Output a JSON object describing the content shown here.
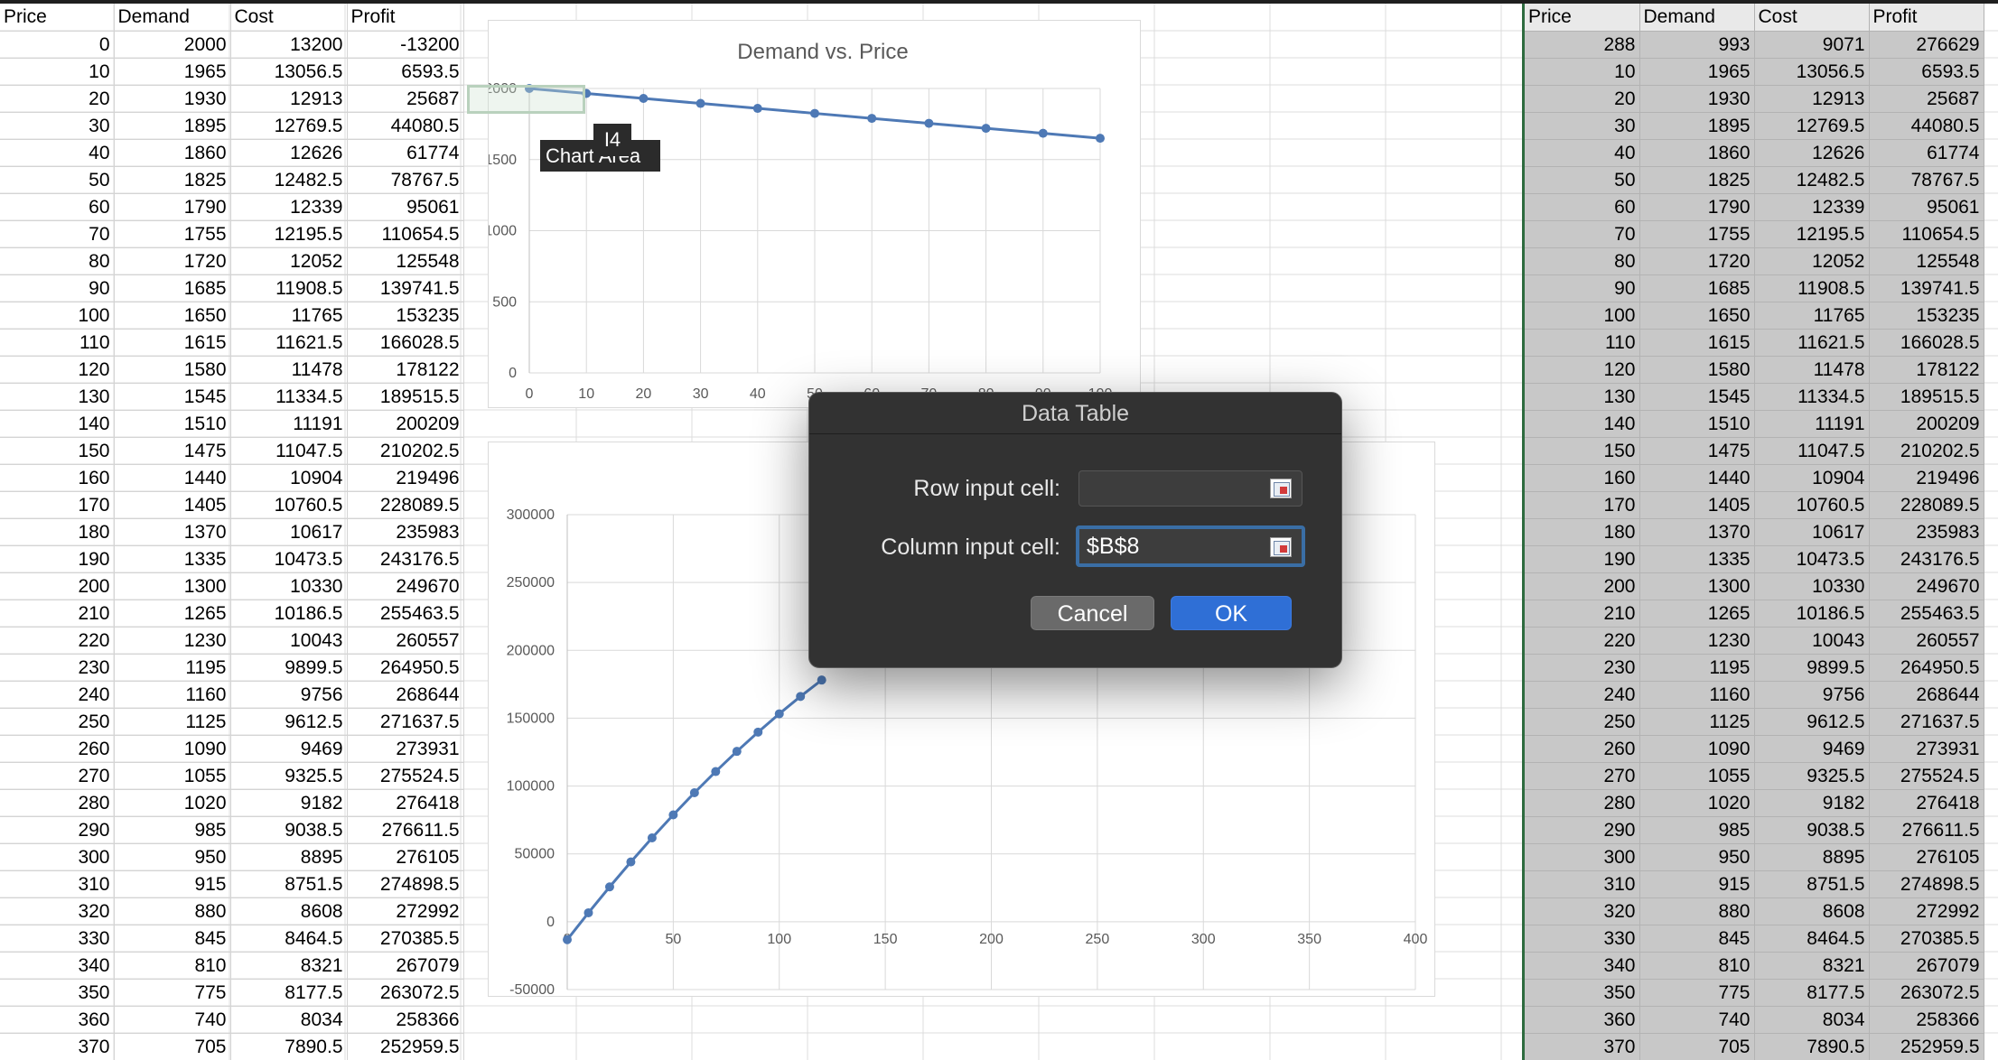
{
  "headers": [
    "Price",
    "Demand",
    "Cost",
    "Profit"
  ],
  "left_rows": [
    [
      "0",
      "2000",
      "13200",
      "-13200"
    ],
    [
      "10",
      "1965",
      "13056.5",
      "6593.5"
    ],
    [
      "20",
      "1930",
      "12913",
      "25687"
    ],
    [
      "30",
      "1895",
      "12769.5",
      "44080.5"
    ],
    [
      "40",
      "1860",
      "12626",
      "61774"
    ],
    [
      "50",
      "1825",
      "12482.5",
      "78767.5"
    ],
    [
      "60",
      "1790",
      "12339",
      "95061"
    ],
    [
      "70",
      "1755",
      "12195.5",
      "110654.5"
    ],
    [
      "80",
      "1720",
      "12052",
      "125548"
    ],
    [
      "90",
      "1685",
      "11908.5",
      "139741.5"
    ],
    [
      "100",
      "1650",
      "11765",
      "153235"
    ],
    [
      "110",
      "1615",
      "11621.5",
      "166028.5"
    ],
    [
      "120",
      "1580",
      "11478",
      "178122"
    ],
    [
      "130",
      "1545",
      "11334.5",
      "189515.5"
    ],
    [
      "140",
      "1510",
      "11191",
      "200209"
    ],
    [
      "150",
      "1475",
      "11047.5",
      "210202.5"
    ],
    [
      "160",
      "1440",
      "10904",
      "219496"
    ],
    [
      "170",
      "1405",
      "10760.5",
      "228089.5"
    ],
    [
      "180",
      "1370",
      "10617",
      "235983"
    ],
    [
      "190",
      "1335",
      "10473.5",
      "243176.5"
    ],
    [
      "200",
      "1300",
      "10330",
      "249670"
    ],
    [
      "210",
      "1265",
      "10186.5",
      "255463.5"
    ],
    [
      "220",
      "1230",
      "10043",
      "260557"
    ],
    [
      "230",
      "1195",
      "9899.5",
      "264950.5"
    ],
    [
      "240",
      "1160",
      "9756",
      "268644"
    ],
    [
      "250",
      "1125",
      "9612.5",
      "271637.5"
    ],
    [
      "260",
      "1090",
      "9469",
      "273931"
    ],
    [
      "270",
      "1055",
      "9325.5",
      "275524.5"
    ],
    [
      "280",
      "1020",
      "9182",
      "276418"
    ],
    [
      "290",
      "985",
      "9038.5",
      "276611.5"
    ],
    [
      "300",
      "950",
      "8895",
      "276105"
    ],
    [
      "310",
      "915",
      "8751.5",
      "274898.5"
    ],
    [
      "320",
      "880",
      "8608",
      "272992"
    ],
    [
      "330",
      "845",
      "8464.5",
      "270385.5"
    ],
    [
      "340",
      "810",
      "8321",
      "267079"
    ],
    [
      "350",
      "775",
      "8177.5",
      "263072.5"
    ],
    [
      "360",
      "740",
      "8034",
      "258366"
    ],
    [
      "370",
      "705",
      "7890.5",
      "252959.5"
    ]
  ],
  "right_rows": [
    [
      "288",
      "993",
      "9071",
      "276629"
    ],
    [
      "10",
      "1965",
      "13056.5",
      "6593.5"
    ],
    [
      "20",
      "1930",
      "12913",
      "25687"
    ],
    [
      "30",
      "1895",
      "12769.5",
      "44080.5"
    ],
    [
      "40",
      "1860",
      "12626",
      "61774"
    ],
    [
      "50",
      "1825",
      "12482.5",
      "78767.5"
    ],
    [
      "60",
      "1790",
      "12339",
      "95061"
    ],
    [
      "70",
      "1755",
      "12195.5",
      "110654.5"
    ],
    [
      "80",
      "1720",
      "12052",
      "125548"
    ],
    [
      "90",
      "1685",
      "11908.5",
      "139741.5"
    ],
    [
      "100",
      "1650",
      "11765",
      "153235"
    ],
    [
      "110",
      "1615",
      "11621.5",
      "166028.5"
    ],
    [
      "120",
      "1580",
      "11478",
      "178122"
    ],
    [
      "130",
      "1545",
      "11334.5",
      "189515.5"
    ],
    [
      "140",
      "1510",
      "11191",
      "200209"
    ],
    [
      "150",
      "1475",
      "11047.5",
      "210202.5"
    ],
    [
      "160",
      "1440",
      "10904",
      "219496"
    ],
    [
      "170",
      "1405",
      "10760.5",
      "228089.5"
    ],
    [
      "180",
      "1370",
      "10617",
      "235983"
    ],
    [
      "190",
      "1335",
      "10473.5",
      "243176.5"
    ],
    [
      "200",
      "1300",
      "10330",
      "249670"
    ],
    [
      "210",
      "1265",
      "10186.5",
      "255463.5"
    ],
    [
      "220",
      "1230",
      "10043",
      "260557"
    ],
    [
      "230",
      "1195",
      "9899.5",
      "264950.5"
    ],
    [
      "240",
      "1160",
      "9756",
      "268644"
    ],
    [
      "250",
      "1125",
      "9612.5",
      "271637.5"
    ],
    [
      "260",
      "1090",
      "9469",
      "273931"
    ],
    [
      "270",
      "1055",
      "9325.5",
      "275524.5"
    ],
    [
      "280",
      "1020",
      "9182",
      "276418"
    ],
    [
      "290",
      "985",
      "9038.5",
      "276611.5"
    ],
    [
      "300",
      "950",
      "8895",
      "276105"
    ],
    [
      "310",
      "915",
      "8751.5",
      "274898.5"
    ],
    [
      "320",
      "880",
      "8608",
      "272992"
    ],
    [
      "330",
      "845",
      "8464.5",
      "270385.5"
    ],
    [
      "340",
      "810",
      "8321",
      "267079"
    ],
    [
      "350",
      "775",
      "8177.5",
      "263072.5"
    ],
    [
      "360",
      "740",
      "8034",
      "258366"
    ],
    [
      "370",
      "705",
      "7890.5",
      "252959.5"
    ]
  ],
  "tooltip": {
    "cell": "I4",
    "area": "Chart Area"
  },
  "dialog": {
    "title": "Data Table",
    "row_label": "Row input cell:",
    "row_value": "",
    "column_label": "Column input cell:",
    "column_value": "$B$8",
    "cancel": "Cancel",
    "ok": "OK"
  },
  "colors": {
    "series": "#4e79b5",
    "selection_border": "#2e6b3f",
    "ok_button": "#2f6fd6"
  },
  "chart_data": [
    {
      "type": "scatter",
      "title": "Demand vs. Price",
      "xlabel": "",
      "ylabel": "",
      "x": [
        0,
        10,
        20,
        30,
        40,
        50,
        60,
        70,
        80,
        90,
        100
      ],
      "y": [
        2000,
        1965,
        1930,
        1895,
        1860,
        1825,
        1790,
        1755,
        1720,
        1685,
        1650
      ],
      "xlim": [
        0,
        100
      ],
      "ylim": [
        0,
        2000
      ],
      "xticks": [
        "0",
        "10",
        "20",
        "30",
        "40",
        "50",
        "60",
        "70",
        "80",
        "90",
        "100"
      ],
      "yticks": [
        "0",
        "500",
        "1000",
        "1500",
        "2000"
      ],
      "grid": true
    },
    {
      "type": "scatter",
      "title": "",
      "xlabel": "",
      "ylabel": "",
      "x": [
        0,
        10,
        20,
        30,
        40,
        50,
        60,
        70,
        80,
        90,
        100,
        110,
        120
      ],
      "y": [
        -13200,
        6593.5,
        25687,
        44080.5,
        61774,
        78767.5,
        95061,
        110654.5,
        125548,
        139741.5,
        153235,
        166028.5,
        178122
      ],
      "xlim": [
        0,
        400
      ],
      "ylim": [
        -50000,
        300000
      ],
      "xticks": [
        "0",
        "50",
        "100",
        "150",
        "200",
        "250",
        "300",
        "350",
        "400"
      ],
      "yticks": [
        "-50000",
        "0",
        "50000",
        "100000",
        "150000",
        "200000",
        "250000",
        "300000"
      ],
      "grid": true
    }
  ]
}
